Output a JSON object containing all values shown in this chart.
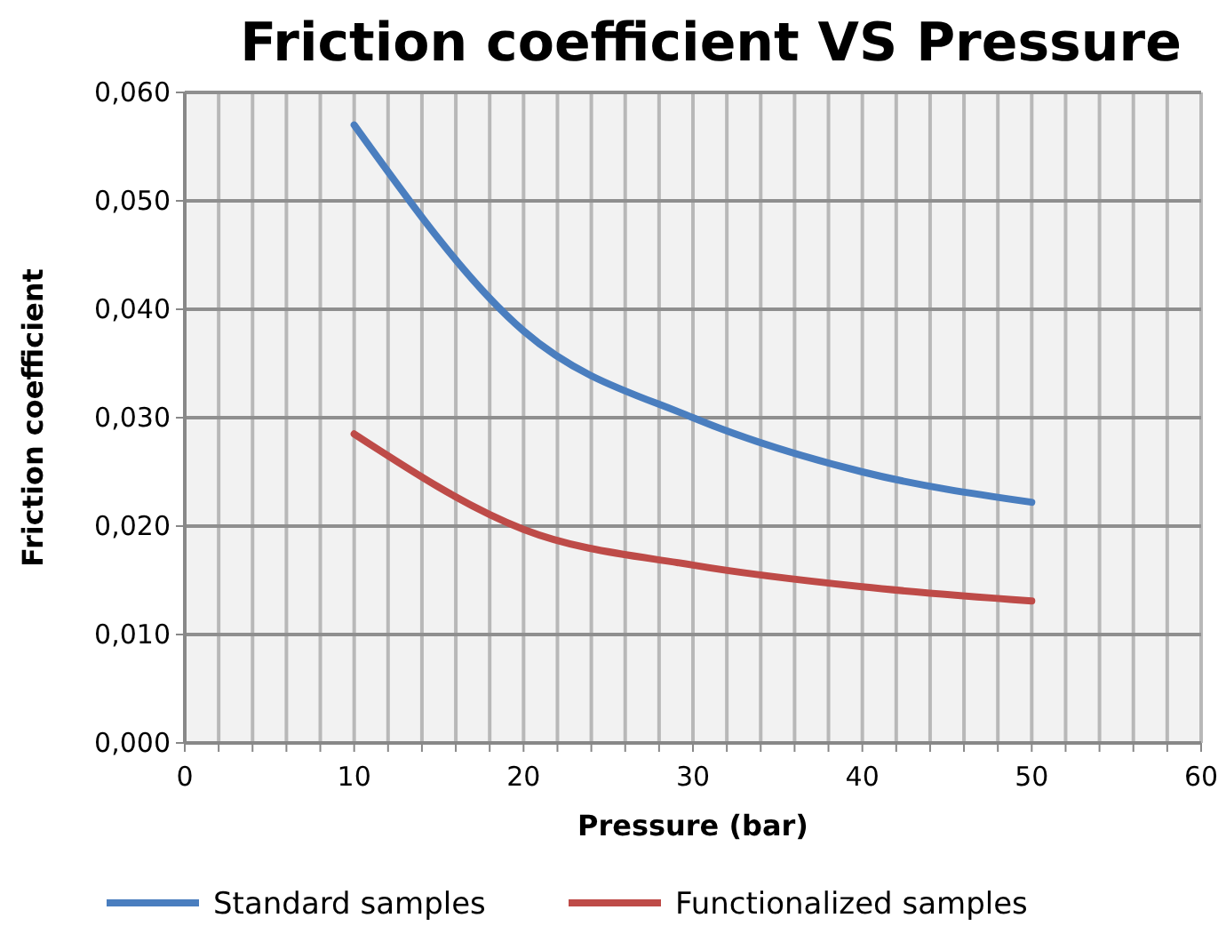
{
  "chart_data": {
    "type": "line",
    "title": "Friction coefficient VS Pressure",
    "xlabel": "Pressure (bar)",
    "ylabel": "Friction coefficient",
    "x": [
      10,
      20,
      30,
      40,
      50
    ],
    "series": [
      {
        "name": "Standard samples",
        "color": "#4a7ebf",
        "values": [
          0.057,
          0.038,
          0.03,
          0.025,
          0.0222
        ]
      },
      {
        "name": "Functionalized samples",
        "color": "#be4b48",
        "values": [
          0.0285,
          0.0197,
          0.0164,
          0.0144,
          0.0131
        ]
      }
    ],
    "xlim": [
      0,
      60
    ],
    "xticks": [
      0,
      {
        "value": 2,
        "label": null
      },
      {
        "value": 4,
        "label": null
      },
      {
        "value": 6,
        "label": null
      },
      {
        "value": 8,
        "label": null
      },
      10,
      {
        "value": 12,
        "label": null
      },
      {
        "value": 14,
        "label": null
      },
      {
        "value": 16,
        "label": null
      },
      {
        "value": 18,
        "label": null
      },
      20,
      {
        "value": 22,
        "label": null
      },
      {
        "value": 24,
        "label": null
      },
      {
        "value": 26,
        "label": null
      },
      {
        "value": 28,
        "label": null
      },
      30,
      {
        "value": 32,
        "label": null
      },
      {
        "value": 34,
        "label": null
      },
      {
        "value": 36,
        "label": null
      },
      {
        "value": 38,
        "label": null
      },
      40,
      {
        "value": 42,
        "label": null
      },
      {
        "value": 44,
        "label": null
      },
      {
        "value": 46,
        "label": null
      },
      {
        "value": 48,
        "label": null
      },
      50,
      {
        "value": 52,
        "label": null
      },
      {
        "value": 54,
        "label": null
      },
      {
        "value": 56,
        "label": null
      },
      {
        "value": 58,
        "label": null
      },
      60
    ],
    "ylim": [
      0,
      0.06
    ],
    "yticks": [
      {
        "value": 0,
        "label": "0,000"
      },
      {
        "value": 0.01,
        "label": "0,010"
      },
      {
        "value": 0.02,
        "label": "0,020"
      },
      {
        "value": 0.03,
        "label": "0,030"
      },
      {
        "value": 0.04,
        "label": "0,040"
      },
      {
        "value": 0.05,
        "label": "0,050"
      },
      {
        "value": 0.06,
        "label": "0,060"
      }
    ],
    "grid": true,
    "legend": "bottom",
    "marker": "none",
    "line_style": "solid"
  }
}
